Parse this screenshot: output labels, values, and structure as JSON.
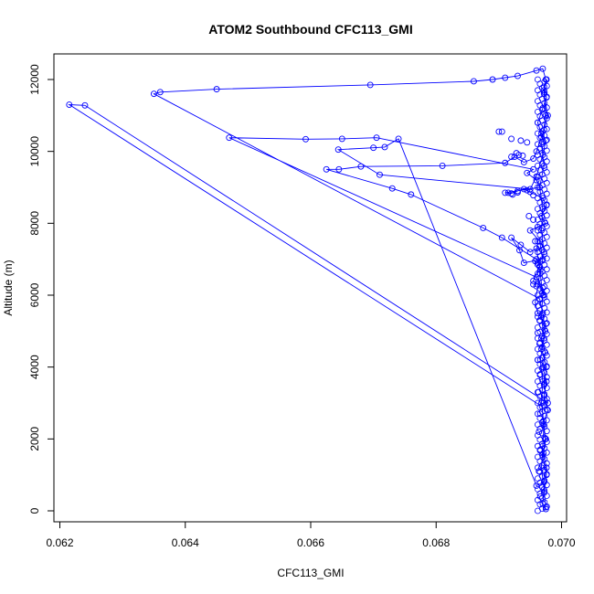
{
  "chart_data": {
    "type": "line",
    "title": "ATOM2 Southbound CFC113_GMI",
    "xlabel": "CFC113_GMI",
    "ylabel": "Altitude (m)",
    "xlim": [
      0.062,
      0.07
    ],
    "ylim": [
      0,
      12300
    ],
    "xticks": [
      0.062,
      0.064,
      0.066,
      0.068,
      0.07
    ],
    "xtick_labels": [
      "0.062",
      "0.064",
      "0.066",
      "0.068",
      "0.070"
    ],
    "yticks": [
      0,
      2000,
      4000,
      6000,
      8000,
      10000,
      12000
    ],
    "ytick_labels": [
      "0",
      "2000",
      "4000",
      "6000",
      "8000",
      "10000",
      "12000"
    ],
    "grid": false,
    "legend": "none",
    "markers": "open-circle",
    "series": [
      {
        "color": "#0000ff",
        "points": [
          [
            0.06975,
            100
          ],
          [
            0.06972,
            500
          ],
          [
            0.06976,
            1000
          ],
          [
            0.0697,
            1500
          ],
          [
            0.06974,
            2000
          ],
          [
            0.06971,
            2500
          ],
          [
            0.06969,
            2900
          ],
          [
            0.06215,
            11300
          ],
          [
            0.0624,
            11280
          ],
          [
            0.06978,
            3000
          ],
          [
            0.06972,
            3500
          ],
          [
            0.06976,
            4000
          ],
          [
            0.06968,
            4500
          ],
          [
            0.06974,
            5000
          ],
          [
            0.0697,
            5500
          ],
          [
            0.06965,
            5900
          ],
          [
            0.0635,
            11600
          ],
          [
            0.0636,
            11650
          ],
          [
            0.0645,
            11730
          ],
          [
            0.06695,
            11850
          ],
          [
            0.0686,
            11950
          ],
          [
            0.0689,
            12000
          ],
          [
            0.0691,
            12050
          ],
          [
            0.0693,
            12100
          ],
          [
            0.0696,
            12250
          ],
          [
            0.0697,
            12300
          ],
          [
            0.06975,
            12000
          ],
          [
            0.06972,
            11600
          ],
          [
            0.06978,
            11000
          ],
          [
            0.06972,
            10600
          ],
          [
            0.06968,
            10400
          ],
          [
            0.0696,
            10000
          ],
          [
            0.06955,
            9800
          ],
          [
            0.0694,
            9700
          ],
          [
            0.06925,
            9850
          ],
          [
            0.0691,
            9680
          ],
          [
            0.0681,
            9600
          ],
          [
            0.0668,
            9580
          ],
          [
            0.06645,
            9500
          ],
          [
            0.06625,
            9500
          ],
          [
            0.0673,
            8970
          ],
          [
            0.0676,
            8800
          ],
          [
            0.06875,
            7870
          ],
          [
            0.06905,
            7600
          ],
          [
            0.0696,
            7000
          ],
          [
            0.06965,
            6800
          ],
          [
            0.06955,
            6400
          ],
          [
            0.0697,
            6200
          ],
          [
            0.06972,
            6000
          ],
          [
            0.0696,
            6500
          ],
          [
            0.0647,
            10380
          ],
          [
            0.06592,
            10340
          ],
          [
            0.0665,
            10350
          ],
          [
            0.06705,
            10380
          ],
          [
            0.06955,
            9500
          ],
          [
            0.06945,
            9400
          ],
          [
            0.0696,
            9200
          ],
          [
            0.06965,
            9000
          ],
          [
            0.0691,
            8850
          ],
          [
            0.0692,
            8830
          ],
          [
            0.0693,
            8900
          ],
          [
            0.0694,
            8950
          ],
          [
            0.0697,
            8700
          ],
          [
            0.06976,
            8500
          ],
          [
            0.06968,
            8200
          ],
          [
            0.06974,
            8000
          ],
          [
            0.0695,
            7800
          ],
          [
            0.06965,
            7500
          ],
          [
            0.0697,
            7000
          ],
          [
            0.0694,
            6900
          ],
          [
            0.06933,
            7250
          ],
          [
            0.0692,
            7600
          ],
          [
            0.06935,
            7400
          ],
          [
            0.0695,
            7200
          ],
          [
            0.0696,
            7300
          ],
          [
            0.06966,
            6700
          ],
          [
            0.06958,
            5800
          ],
          [
            0.06962,
            5500
          ],
          [
            0.06975,
            5200
          ],
          [
            0.06968,
            4800
          ],
          [
            0.06974,
            4400
          ],
          [
            0.0697,
            4000
          ],
          [
            0.06976,
            3600
          ],
          [
            0.06972,
            3200
          ],
          [
            0.06978,
            2800
          ],
          [
            0.0697,
            2400
          ],
          [
            0.06975,
            2000
          ],
          [
            0.06971,
            1600
          ],
          [
            0.06976,
            1200
          ],
          [
            0.06972,
            800
          ],
          [
            0.0696,
            700
          ],
          [
            0.0674,
            10350
          ],
          [
            0.06718,
            10120
          ],
          [
            0.067,
            10100
          ],
          [
            0.06644,
            10050
          ],
          [
            0.0671,
            9350
          ],
          [
            0.0695,
            8950
          ],
          [
            0.0696,
            9300
          ],
          [
            0.0697,
            9900
          ],
          [
            0.06975,
            10300
          ],
          [
            0.06968,
            10500
          ],
          [
            0.06962,
            10800
          ],
          [
            0.0697,
            11200
          ],
          [
            0.06976,
            11500
          ],
          [
            0.06972,
            11800
          ],
          [
            0.06976,
            12000
          ],
          [
            0.06972,
            11700
          ],
          [
            0.06975,
            11000
          ],
          [
            0.06968,
            10200
          ],
          [
            0.06972,
            9600
          ],
          [
            0.06965,
            9000
          ],
          [
            0.0697,
            8400
          ],
          [
            0.06968,
            7800
          ],
          [
            0.06972,
            7200
          ],
          [
            0.06966,
            6600
          ],
          [
            0.0697,
            6000
          ],
          [
            0.06968,
            5400
          ],
          [
            0.06972,
            4800
          ],
          [
            0.06966,
            4200
          ],
          [
            0.0697,
            3600
          ],
          [
            0.06968,
            3000
          ],
          [
            0.06972,
            2400
          ],
          [
            0.0697,
            1800
          ],
          [
            0.06968,
            1200
          ],
          [
            0.06972,
            600
          ],
          [
            0.0697,
            200
          ],
          [
            0.06975,
            50
          ]
        ],
        "clusters": [
          [
            0.069,
            10550
          ],
          [
            0.06905,
            10550
          ],
          [
            0.0692,
            10350
          ],
          [
            0.06935,
            10300
          ],
          [
            0.06945,
            10250
          ],
          [
            0.06928,
            9950
          ],
          [
            0.06932,
            9900
          ],
          [
            0.06938,
            9880
          ],
          [
            0.0692,
            9850
          ],
          [
            0.06915,
            8850
          ],
          [
            0.06922,
            8800
          ],
          [
            0.0693,
            8860
          ],
          [
            0.06945,
            8920
          ],
          [
            0.0695,
            8870
          ],
          [
            0.06955,
            8780
          ],
          [
            0.06948,
            8200
          ],
          [
            0.06955,
            8100
          ],
          [
            0.06962,
            7900
          ],
          [
            0.06958,
            7500
          ],
          [
            0.06965,
            7350
          ],
          [
            0.06958,
            6950
          ],
          [
            0.06962,
            6850
          ],
          [
            0.06955,
            6300
          ],
          [
            0.0696,
            6250
          ],
          [
            0.06965,
            5300
          ],
          [
            0.06962,
            4950
          ],
          [
            0.06965,
            4650
          ],
          [
            0.06962,
            4200
          ],
          [
            0.06966,
            3800
          ],
          [
            0.06963,
            3300
          ],
          [
            0.06966,
            2700
          ],
          [
            0.06964,
            2200
          ],
          [
            0.06966,
            1700
          ],
          [
            0.06964,
            1100
          ],
          [
            0.06966,
            400
          ]
        ]
      }
    ]
  }
}
